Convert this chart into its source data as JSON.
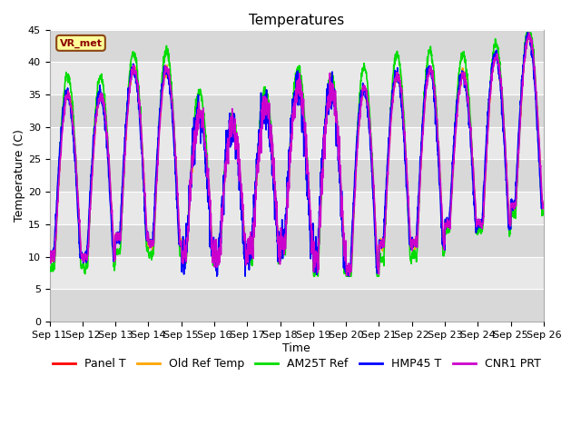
{
  "title": "Temperatures",
  "xlabel": "Time",
  "ylabel": "Temperature (C)",
  "ylim": [
    0,
    45
  ],
  "yticks": [
    0,
    5,
    10,
    15,
    20,
    25,
    30,
    35,
    40,
    45
  ],
  "xtick_labels": [
    "Sep 11",
    "Sep 12",
    "Sep 13",
    "Sep 14",
    "Sep 15",
    "Sep 16",
    "Sep 17",
    "Sep 18",
    "Sep 19",
    "Sep 20",
    "Sep 21",
    "Sep 22",
    "Sep 23",
    "Sep 24",
    "Sep 25",
    "Sep 26"
  ],
  "series_order": [
    "Panel T",
    "Old Ref Temp",
    "AM25T Ref",
    "HMP45 T",
    "CNR1 PRT"
  ],
  "series": {
    "Panel T": {
      "color": "#ff0000",
      "lw": 1.2
    },
    "Old Ref Temp": {
      "color": "#ffa500",
      "lw": 1.2
    },
    "AM25T Ref": {
      "color": "#00dd00",
      "lw": 1.2
    },
    "HMP45 T": {
      "color": "#0000ff",
      "lw": 1.2
    },
    "CNR1 PRT": {
      "color": "#cc00cc",
      "lw": 1.2
    }
  },
  "annotation": "VR_met",
  "plot_bg": "#e8e8e8",
  "fig_bg": "#ffffff",
  "grid_color": "#ffffff",
  "title_fontsize": 11,
  "label_fontsize": 9,
  "tick_fontsize": 8,
  "legend_fontsize": 9,
  "band_colors": [
    "#d8d8d8",
    "#e8e8e8"
  ],
  "n_days": 15,
  "pts_per_day": 144
}
